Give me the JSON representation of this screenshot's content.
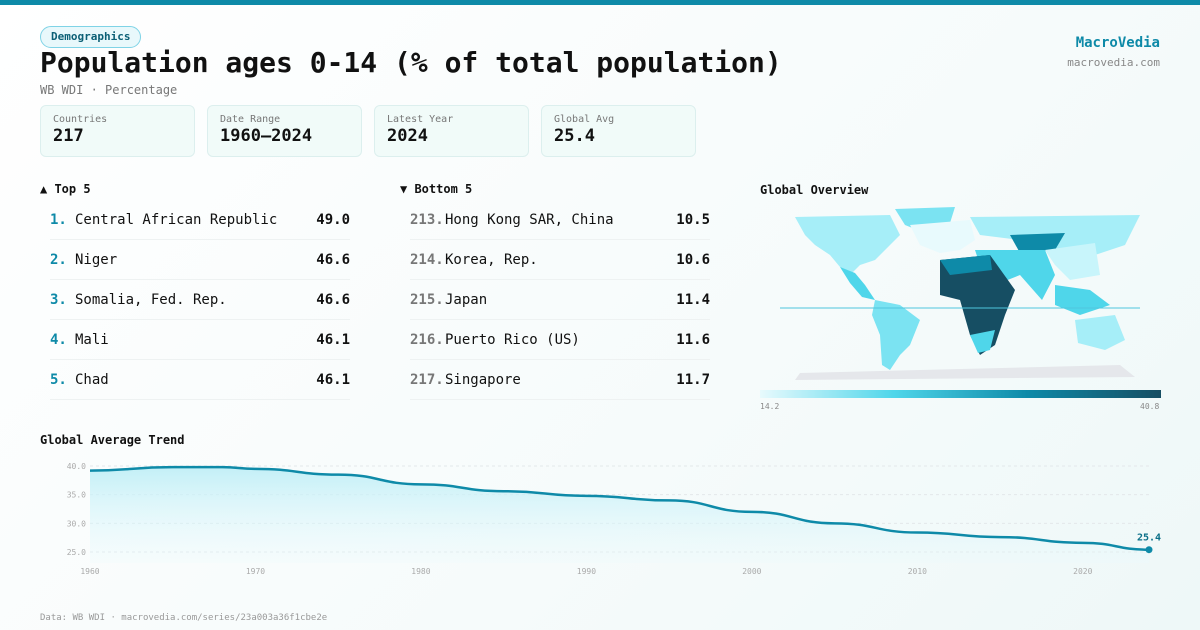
{
  "header": {
    "badge": "Demographics",
    "title": "Population ages 0-14 (% of total population)",
    "subtitle": "WB WDI · Percentage",
    "brand": "MacroVedia",
    "brand_url": "macrovedia.com"
  },
  "stats": [
    {
      "label": "Countries",
      "value": "217"
    },
    {
      "label": "Date Range",
      "value": "1960–2024"
    },
    {
      "label": "Latest Year",
      "value": "2024"
    },
    {
      "label": "Global Avg",
      "value": "25.4"
    }
  ],
  "top5": {
    "title": "▲ Top 5",
    "items": [
      {
        "rank": "1.",
        "name": "Central African Republic",
        "value": "49.0"
      },
      {
        "rank": "2.",
        "name": "Niger",
        "value": "46.6"
      },
      {
        "rank": "3.",
        "name": "Somalia, Fed. Rep.",
        "value": "46.6"
      },
      {
        "rank": "4.",
        "name": "Mali",
        "value": "46.1"
      },
      {
        "rank": "5.",
        "name": "Chad",
        "value": "46.1"
      }
    ]
  },
  "bottom5": {
    "title": "▼ Bottom 5",
    "items": [
      {
        "rank": "213.",
        "name": "Hong Kong SAR, China",
        "value": "10.5"
      },
      {
        "rank": "214.",
        "name": "Korea, Rep.",
        "value": "10.6"
      },
      {
        "rank": "215.",
        "name": "Japan",
        "value": "11.4"
      },
      {
        "rank": "216.",
        "name": "Puerto Rico (US)",
        "value": "11.6"
      },
      {
        "rank": "217.",
        "name": "Singapore",
        "value": "11.7"
      }
    ]
  },
  "map": {
    "title": "Global Overview",
    "scale_min": "14.2",
    "scale_max": "40.8",
    "colors": [
      "#e8fafd",
      "#4fd6ea",
      "#0e8aa8",
      "#164e63"
    ]
  },
  "chart_data": {
    "type": "area",
    "title": "Global Average Trend",
    "xlabel": "",
    "ylabel": "",
    "x": [
      1960,
      1965,
      1968,
      1970,
      1975,
      1980,
      1985,
      1990,
      1995,
      2000,
      2005,
      2010,
      2015,
      2020,
      2024
    ],
    "values": [
      39.2,
      39.8,
      39.8,
      39.5,
      38.5,
      36.8,
      35.6,
      34.8,
      34.0,
      32.0,
      30.0,
      28.4,
      27.6,
      26.6,
      25.4
    ],
    "yticks": [
      "40.0",
      "35.0",
      "30.0",
      "25.0"
    ],
    "xticks": [
      "1960",
      "1970",
      "1980",
      "1990",
      "2000",
      "2010",
      "2020"
    ],
    "ylim": [
      25,
      40
    ],
    "xlim": [
      1960,
      2024
    ],
    "grid": true,
    "last_label": "25.4",
    "color": "#0e8aa8"
  },
  "footer": "Data: WB WDI · macrovedia.com/series/23a003a36f1cbe2e"
}
